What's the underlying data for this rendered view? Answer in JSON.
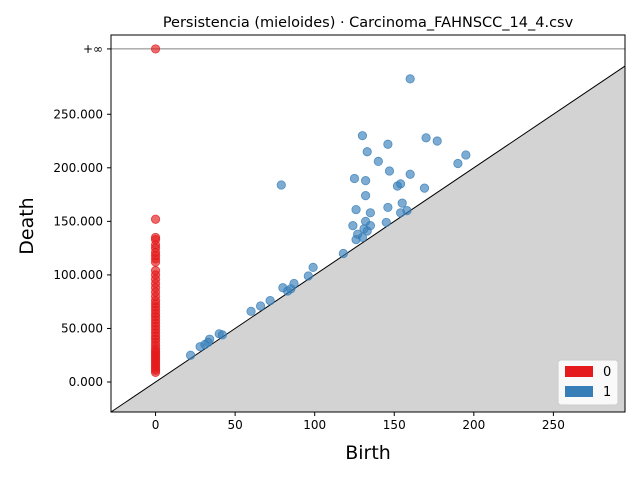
{
  "chart_data": {
    "type": "scatter",
    "title": "Persistencia (mieloides) · Carcinoma_FAHNSCC_14_4.csv",
    "xlabel": "Birth",
    "ylabel": "Death",
    "xlim": [
      -28,
      295
    ],
    "ylim": [
      -28000,
      324000
    ],
    "x_ticks": [
      {
        "value": 0,
        "label": "0"
      },
      {
        "value": 50,
        "label": "50"
      },
      {
        "value": 100,
        "label": "100"
      },
      {
        "value": 150,
        "label": "150"
      },
      {
        "value": 200,
        "label": "200"
      },
      {
        "value": 250,
        "label": "250"
      }
    ],
    "y_ticks": [
      {
        "value": 0,
        "label": "0.000"
      },
      {
        "value": 50000,
        "label": "50.000"
      },
      {
        "value": 100000,
        "label": "100.000"
      },
      {
        "value": 150000,
        "label": "150.000"
      },
      {
        "value": 200000,
        "label": "200.000"
      },
      {
        "value": 250000,
        "label": "250.000"
      }
    ],
    "infinity_line": {
      "value": 311000,
      "label": "+∞"
    },
    "grid": false,
    "legend_position": "bottom-right",
    "colors": {
      "dim0": "#e41a1c",
      "dim1": "#377eb8",
      "diagonal_fill": "#d3d3d3",
      "infinity_line": "#808080"
    },
    "series": [
      {
        "name": "0",
        "color": "#e41a1c",
        "points": [
          [
            0,
            311000
          ],
          [
            0,
            152000
          ],
          [
            0,
            135000
          ],
          [
            0,
            133000
          ],
          [
            0,
            128000
          ],
          [
            0,
            125000
          ],
          [
            0,
            121000
          ],
          [
            0,
            118000
          ],
          [
            0,
            115000
          ],
          [
            0,
            112000
          ],
          [
            0,
            104000
          ],
          [
            0,
            100000
          ],
          [
            0,
            96000
          ],
          [
            0,
            92000
          ],
          [
            0,
            88000
          ],
          [
            0,
            84000
          ],
          [
            0,
            80000
          ],
          [
            0,
            76000
          ],
          [
            0,
            73000
          ],
          [
            0,
            70000
          ],
          [
            0,
            67000
          ],
          [
            0,
            64000
          ],
          [
            0,
            61000
          ],
          [
            0,
            58000
          ],
          [
            0,
            55000
          ],
          [
            0,
            52000
          ],
          [
            0,
            49000
          ],
          [
            0,
            46000
          ],
          [
            0,
            43000
          ],
          [
            0,
            40000
          ],
          [
            0,
            37000
          ],
          [
            0,
            34000
          ],
          [
            0,
            31000
          ],
          [
            0,
            29000
          ],
          [
            0,
            27000
          ],
          [
            0,
            25000
          ],
          [
            0,
            23000
          ],
          [
            0,
            21000
          ],
          [
            0,
            19000
          ],
          [
            0,
            17000
          ],
          [
            0,
            15000
          ],
          [
            0,
            13000
          ],
          [
            0,
            11000
          ],
          [
            0,
            9000
          ]
        ]
      },
      {
        "name": "1",
        "color": "#377eb8",
        "points": [
          [
            160,
            283000
          ],
          [
            130,
            230000
          ],
          [
            170,
            228000
          ],
          [
            177,
            225000
          ],
          [
            146,
            222000
          ],
          [
            133,
            215000
          ],
          [
            195,
            212000
          ],
          [
            140,
            206000
          ],
          [
            190,
            204000
          ],
          [
            147,
            197000
          ],
          [
            160,
            194000
          ],
          [
            125,
            190000
          ],
          [
            132,
            188000
          ],
          [
            154,
            185000
          ],
          [
            152,
            183000
          ],
          [
            79,
            184000
          ],
          [
            169,
            181000
          ],
          [
            132,
            174000
          ],
          [
            155,
            167000
          ],
          [
            146,
            163000
          ],
          [
            126,
            161000
          ],
          [
            158,
            160000
          ],
          [
            135,
            158000
          ],
          [
            154,
            158000
          ],
          [
            145,
            149000
          ],
          [
            132,
            150000
          ],
          [
            124,
            146000
          ],
          [
            135,
            146000
          ],
          [
            131,
            143000
          ],
          [
            133,
            141000
          ],
          [
            127,
            138000
          ],
          [
            126,
            133000
          ],
          [
            130,
            135000
          ],
          [
            118,
            120000
          ],
          [
            99,
            107000
          ],
          [
            96,
            99000
          ],
          [
            87,
            92000
          ],
          [
            80,
            88000
          ],
          [
            85,
            87000
          ],
          [
            83,
            85000
          ],
          [
            72,
            76000
          ],
          [
            66,
            71000
          ],
          [
            60,
            66000
          ],
          [
            40,
            45000
          ],
          [
            42,
            44000
          ],
          [
            34,
            40000
          ],
          [
            33,
            37000
          ],
          [
            31,
            35000
          ],
          [
            28,
            33000
          ],
          [
            22,
            25000
          ]
        ]
      }
    ]
  }
}
